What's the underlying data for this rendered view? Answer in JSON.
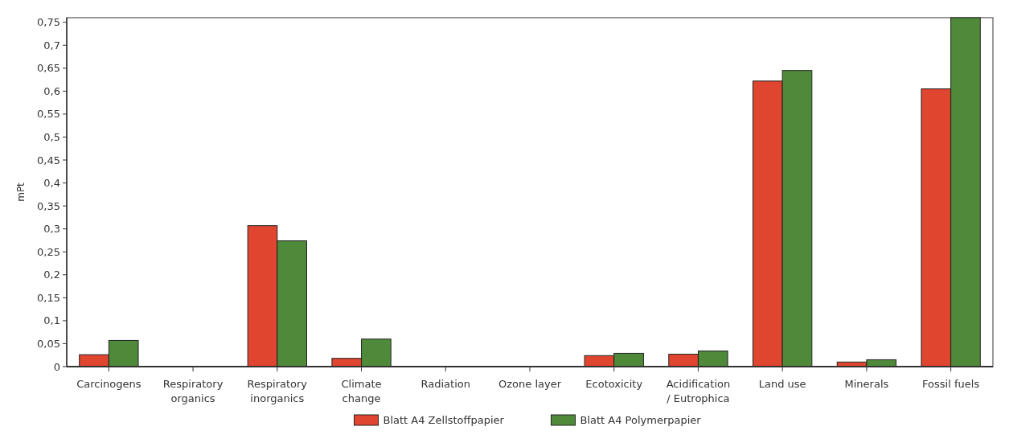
{
  "chart_data": {
    "type": "bar",
    "ylabel": "mPt",
    "categories": [
      "Carcinogens",
      "Respiratory organics",
      "Respiratory inorganics",
      "Climate change",
      "Radiation",
      "Ozone layer",
      "Ecotoxicity",
      "Acidification / Eutrophica",
      "Land use",
      "Minerals",
      "Fossil fuels"
    ],
    "series": [
      {
        "name": "Blatt A4 Zellstoffpapier",
        "color": "#e0452f",
        "values": [
          0.026,
          0,
          0.307,
          0.018,
          0,
          0,
          0.024,
          0.027,
          0.622,
          0.01,
          0.605
        ]
      },
      {
        "name": "Blatt A4 Polymerpapier",
        "color": "#4f8a3a",
        "values": [
          0.057,
          0,
          0.274,
          0.06,
          0,
          0,
          0.029,
          0.034,
          0.645,
          0.015,
          0.76
        ]
      }
    ],
    "ylim": [
      0,
      0.76
    ],
    "yticks": [
      0,
      {
        "value": 0.05,
        "label": "0,05"
      },
      {
        "value": 0.1,
        "label": "0,1"
      },
      {
        "value": 0.15,
        "label": "0,15"
      },
      {
        "value": 0.2,
        "label": "0,2"
      },
      {
        "value": 0.25,
        "label": "0,25"
      },
      {
        "value": 0.3,
        "label": "0,3"
      },
      {
        "value": 0.35,
        "label": "0,35"
      },
      {
        "value": 0.4,
        "label": "0,4"
      },
      {
        "value": 0.45,
        "label": "0,45"
      },
      {
        "value": 0.5,
        "label": "0,5"
      },
      {
        "value": 0.55,
        "label": "0,55"
      },
      {
        "value": 0.6,
        "label": "0,6"
      },
      {
        "value": 0.65,
        "label": "0,65"
      },
      {
        "value": 0.7,
        "label": "0,7"
      },
      {
        "value": 0.75,
        "label": "0,75"
      }
    ],
    "grid": false,
    "legend": "bottom"
  }
}
